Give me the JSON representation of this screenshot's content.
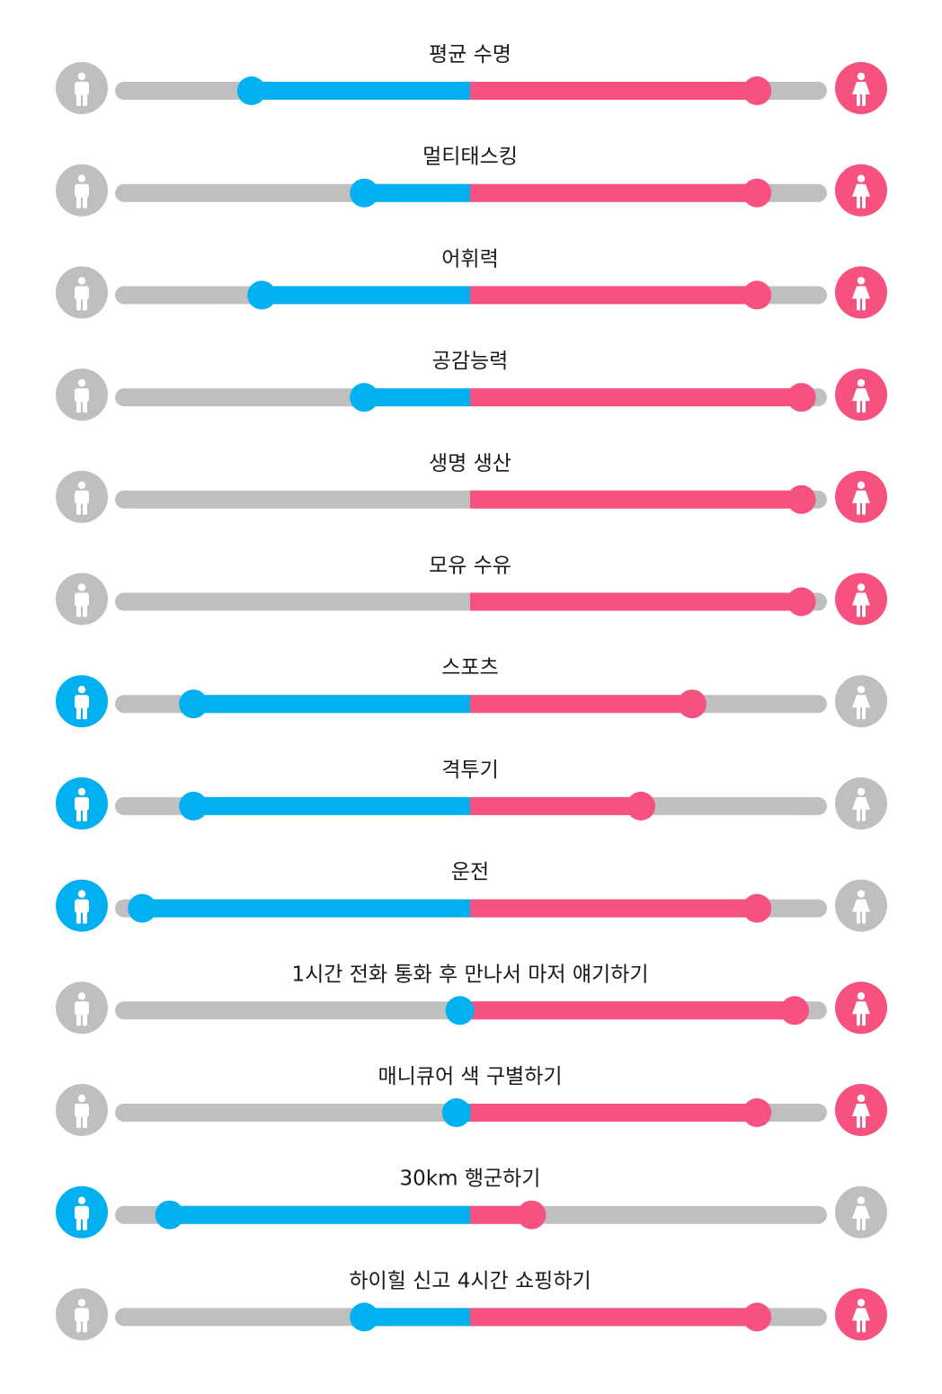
{
  "colors": {
    "male": "#00b0f0",
    "female": "#f7517f",
    "track": "#bfbfbf",
    "inactive_icon": "#bfbfbf",
    "icon_glyph": "#ffffff"
  },
  "icons": {
    "left": "male-person-icon",
    "right": "female-person-icon"
  },
  "chart_data": {
    "type": "diverging-bar",
    "scale": [
      -100,
      100
    ],
    "rows": [
      {
        "label": "평균 수명",
        "male": 64,
        "female": 84,
        "highlight": "female"
      },
      {
        "label": "멀티태스킹",
        "male": 31,
        "female": 84,
        "highlight": "female"
      },
      {
        "label": "어휘력",
        "male": 61,
        "female": 84,
        "highlight": "female"
      },
      {
        "label": "공감능력",
        "male": 31,
        "female": 97,
        "highlight": "female"
      },
      {
        "label": "생명 생산",
        "male": 0,
        "female": 97,
        "highlight": "female"
      },
      {
        "label": "모유 수유",
        "male": 0,
        "female": 97,
        "highlight": "female"
      },
      {
        "label": "스포츠",
        "male": 81,
        "female": 65,
        "highlight": "male"
      },
      {
        "label": "격투기",
        "male": 81,
        "female": 50,
        "highlight": "male"
      },
      {
        "label": "운전",
        "male": 96,
        "female": 84,
        "highlight": "male"
      },
      {
        "label": "1시간 전화 통화 후 만나서 마저 얘기하기",
        "male": 3,
        "female": 95,
        "highlight": "female"
      },
      {
        "label": "매니큐어 색 구별하기",
        "male": 4,
        "female": 84,
        "highlight": "female"
      },
      {
        "label": "30km 행군하기",
        "male": 88,
        "female": 18,
        "highlight": "male"
      },
      {
        "label": "하이힐 신고 4시간 쇼핑하기",
        "male": 31,
        "female": 84,
        "highlight": "female"
      }
    ]
  }
}
